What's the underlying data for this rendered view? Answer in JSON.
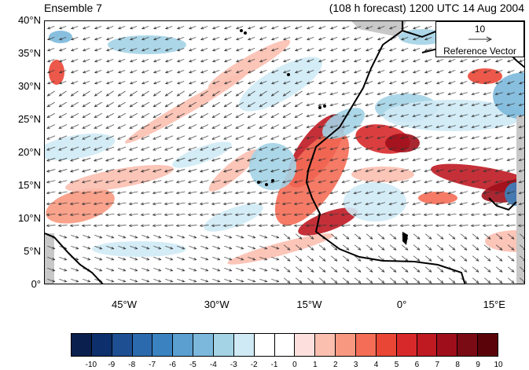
{
  "header": {
    "title_left": "Ensemble 7",
    "title_right": "(108 h forecast) 1200 UTC 14 Aug 2004"
  },
  "axes": {
    "lat_labels": [
      "40°N",
      "35°N",
      "30°N",
      "25°N",
      "20°N",
      "15°N",
      "10°N",
      "5°N",
      "0°"
    ],
    "lat_values": [
      40,
      35,
      30,
      25,
      20,
      15,
      10,
      5,
      0
    ],
    "lon_labels": [
      "45°W",
      "30°W",
      "15°W",
      "0°",
      "15°E"
    ],
    "lon_values": [
      -45,
      -30,
      -15,
      0,
      15
    ],
    "lon_range": [
      -58,
      20
    ],
    "lat_range": [
      0,
      40
    ]
  },
  "reference_vector": {
    "magnitude": "10",
    "label": "Reference Vector"
  },
  "colorbar": {
    "ticks": [
      "-10",
      "-9",
      "-8",
      "-7",
      "-6",
      "-5",
      "-4",
      "-3",
      "-2",
      "-1",
      "0",
      "1",
      "2",
      "3",
      "4",
      "5",
      "6",
      "7",
      "8",
      "9",
      "10"
    ],
    "colors": [
      "#0a1f4d",
      "#0d2f6b",
      "#1e4f93",
      "#2b6aad",
      "#3a83c0",
      "#5a9fd0",
      "#7bb8dc",
      "#a3d3e5",
      "#cfeaf5",
      "#ffffff",
      "#ffffff",
      "#fde0dd",
      "#fbbfb0",
      "#f89880",
      "#f46d56",
      "#ea4636",
      "#d7292a",
      "#bf1a22",
      "#9f0f1b",
      "#7a0a14",
      "#5a0409"
    ]
  },
  "map_style": {
    "coast_color": "#000000",
    "missing_color": "#c8c8c8",
    "arrow_color": "#333333"
  }
}
